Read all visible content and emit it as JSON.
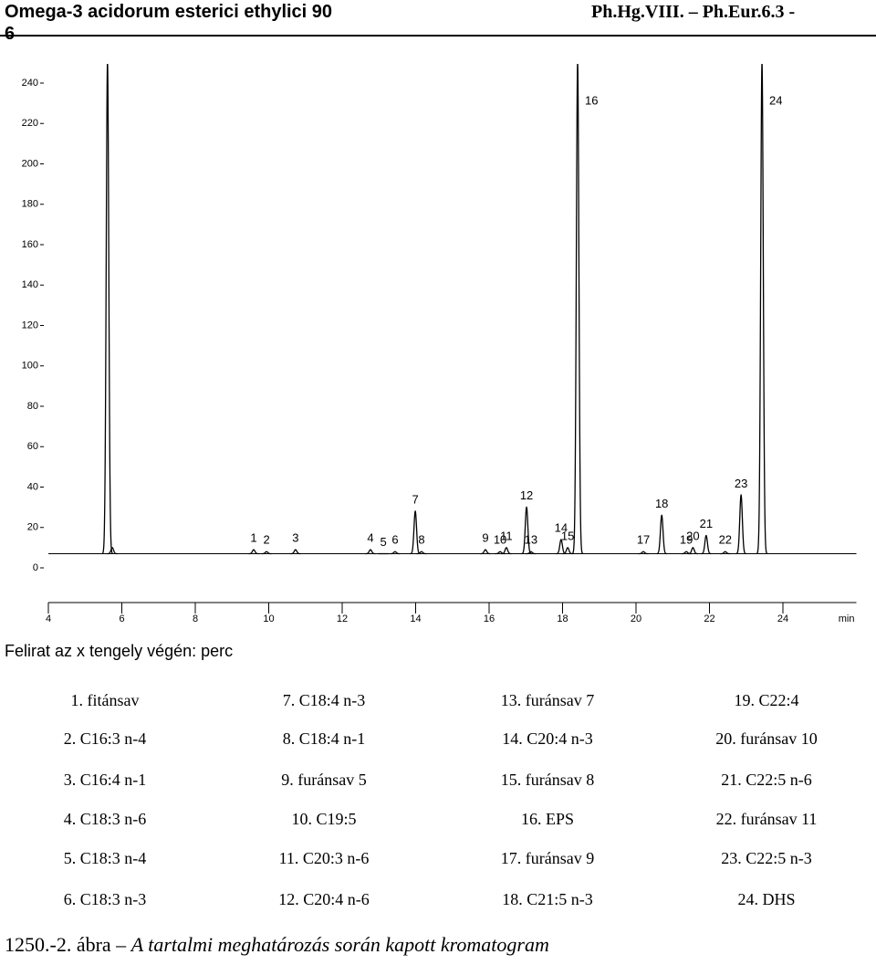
{
  "header": {
    "title": "Omega-3 acidorum esterici ethylici 90",
    "reference": "Ph.Hg.VIII. – Ph.Eur.6.3 -",
    "reference_wrap": "6"
  },
  "chart_data": {
    "type": "chromatogram",
    "x_label": "min",
    "xlim": [
      4,
      26
    ],
    "xticks": [
      4,
      6,
      8,
      10,
      12,
      14,
      16,
      18,
      20,
      22,
      24
    ],
    "ylim": [
      -15,
      250
    ],
    "yticks": [
      0,
      20,
      40,
      60,
      80,
      100,
      120,
      140,
      160,
      180,
      200,
      220,
      240
    ],
    "baseline": 7,
    "color": "#000000",
    "x": [
      5.61,
      5.74,
      9.59,
      9.94,
      10.73,
      12.77,
      13.12,
      13.44,
      13.99,
      14.16,
      15.9,
      16.3,
      16.47,
      17.02,
      17.14,
      17.96,
      18.14,
      18.41,
      20.2,
      20.7,
      21.37,
      21.55,
      21.91,
      22.43,
      22.86,
      23.43
    ],
    "values": [
      250,
      10,
      9,
      8,
      9,
      9,
      7,
      8,
      28,
      8,
      9,
      8,
      10,
      30,
      8,
      14,
      10,
      250,
      8,
      26,
      8,
      10,
      16,
      8,
      36,
      250
    ],
    "peak_labels": [
      null,
      null,
      "1",
      "2",
      "3",
      "4",
      "5",
      "6",
      "7",
      "8",
      "9",
      "10",
      "11",
      "12",
      "13",
      "14",
      "15",
      "16",
      "17",
      "18",
      "19",
      "20",
      "21",
      "22",
      "23",
      "24"
    ]
  },
  "note": "Felirat az x tengely végén: perc",
  "legend": [
    [
      "1. fitánsav",
      "7. C18:4 n-3",
      "13. furánsav 7",
      "19. C22:4"
    ],
    [
      "2. C16:3 n-4",
      "8. C18:4 n-1",
      "14. C20:4 n-3",
      "20. furánsav 10"
    ],
    [
      "3. C16:4 n-1",
      "9. furánsav 5",
      "15. furánsav 8",
      "21. C22:5 n-6"
    ],
    [
      "4. C18:3 n-6",
      "10. C19:5",
      "16. EPS",
      "22. furánsav 11"
    ],
    [
      "5. C18:3 n-4",
      "11. C20:3 n-6",
      "17. furánsav 9",
      "23. C22:5 n-3"
    ],
    [
      "6. C18:3 n-3",
      "12. C20:4 n-6",
      "18. C21:5 n-3",
      "24. DHS"
    ]
  ],
  "caption": {
    "number": "1250.-2. ábra –",
    "text": "A tartalmi meghatározás során kapott kromatogram"
  }
}
